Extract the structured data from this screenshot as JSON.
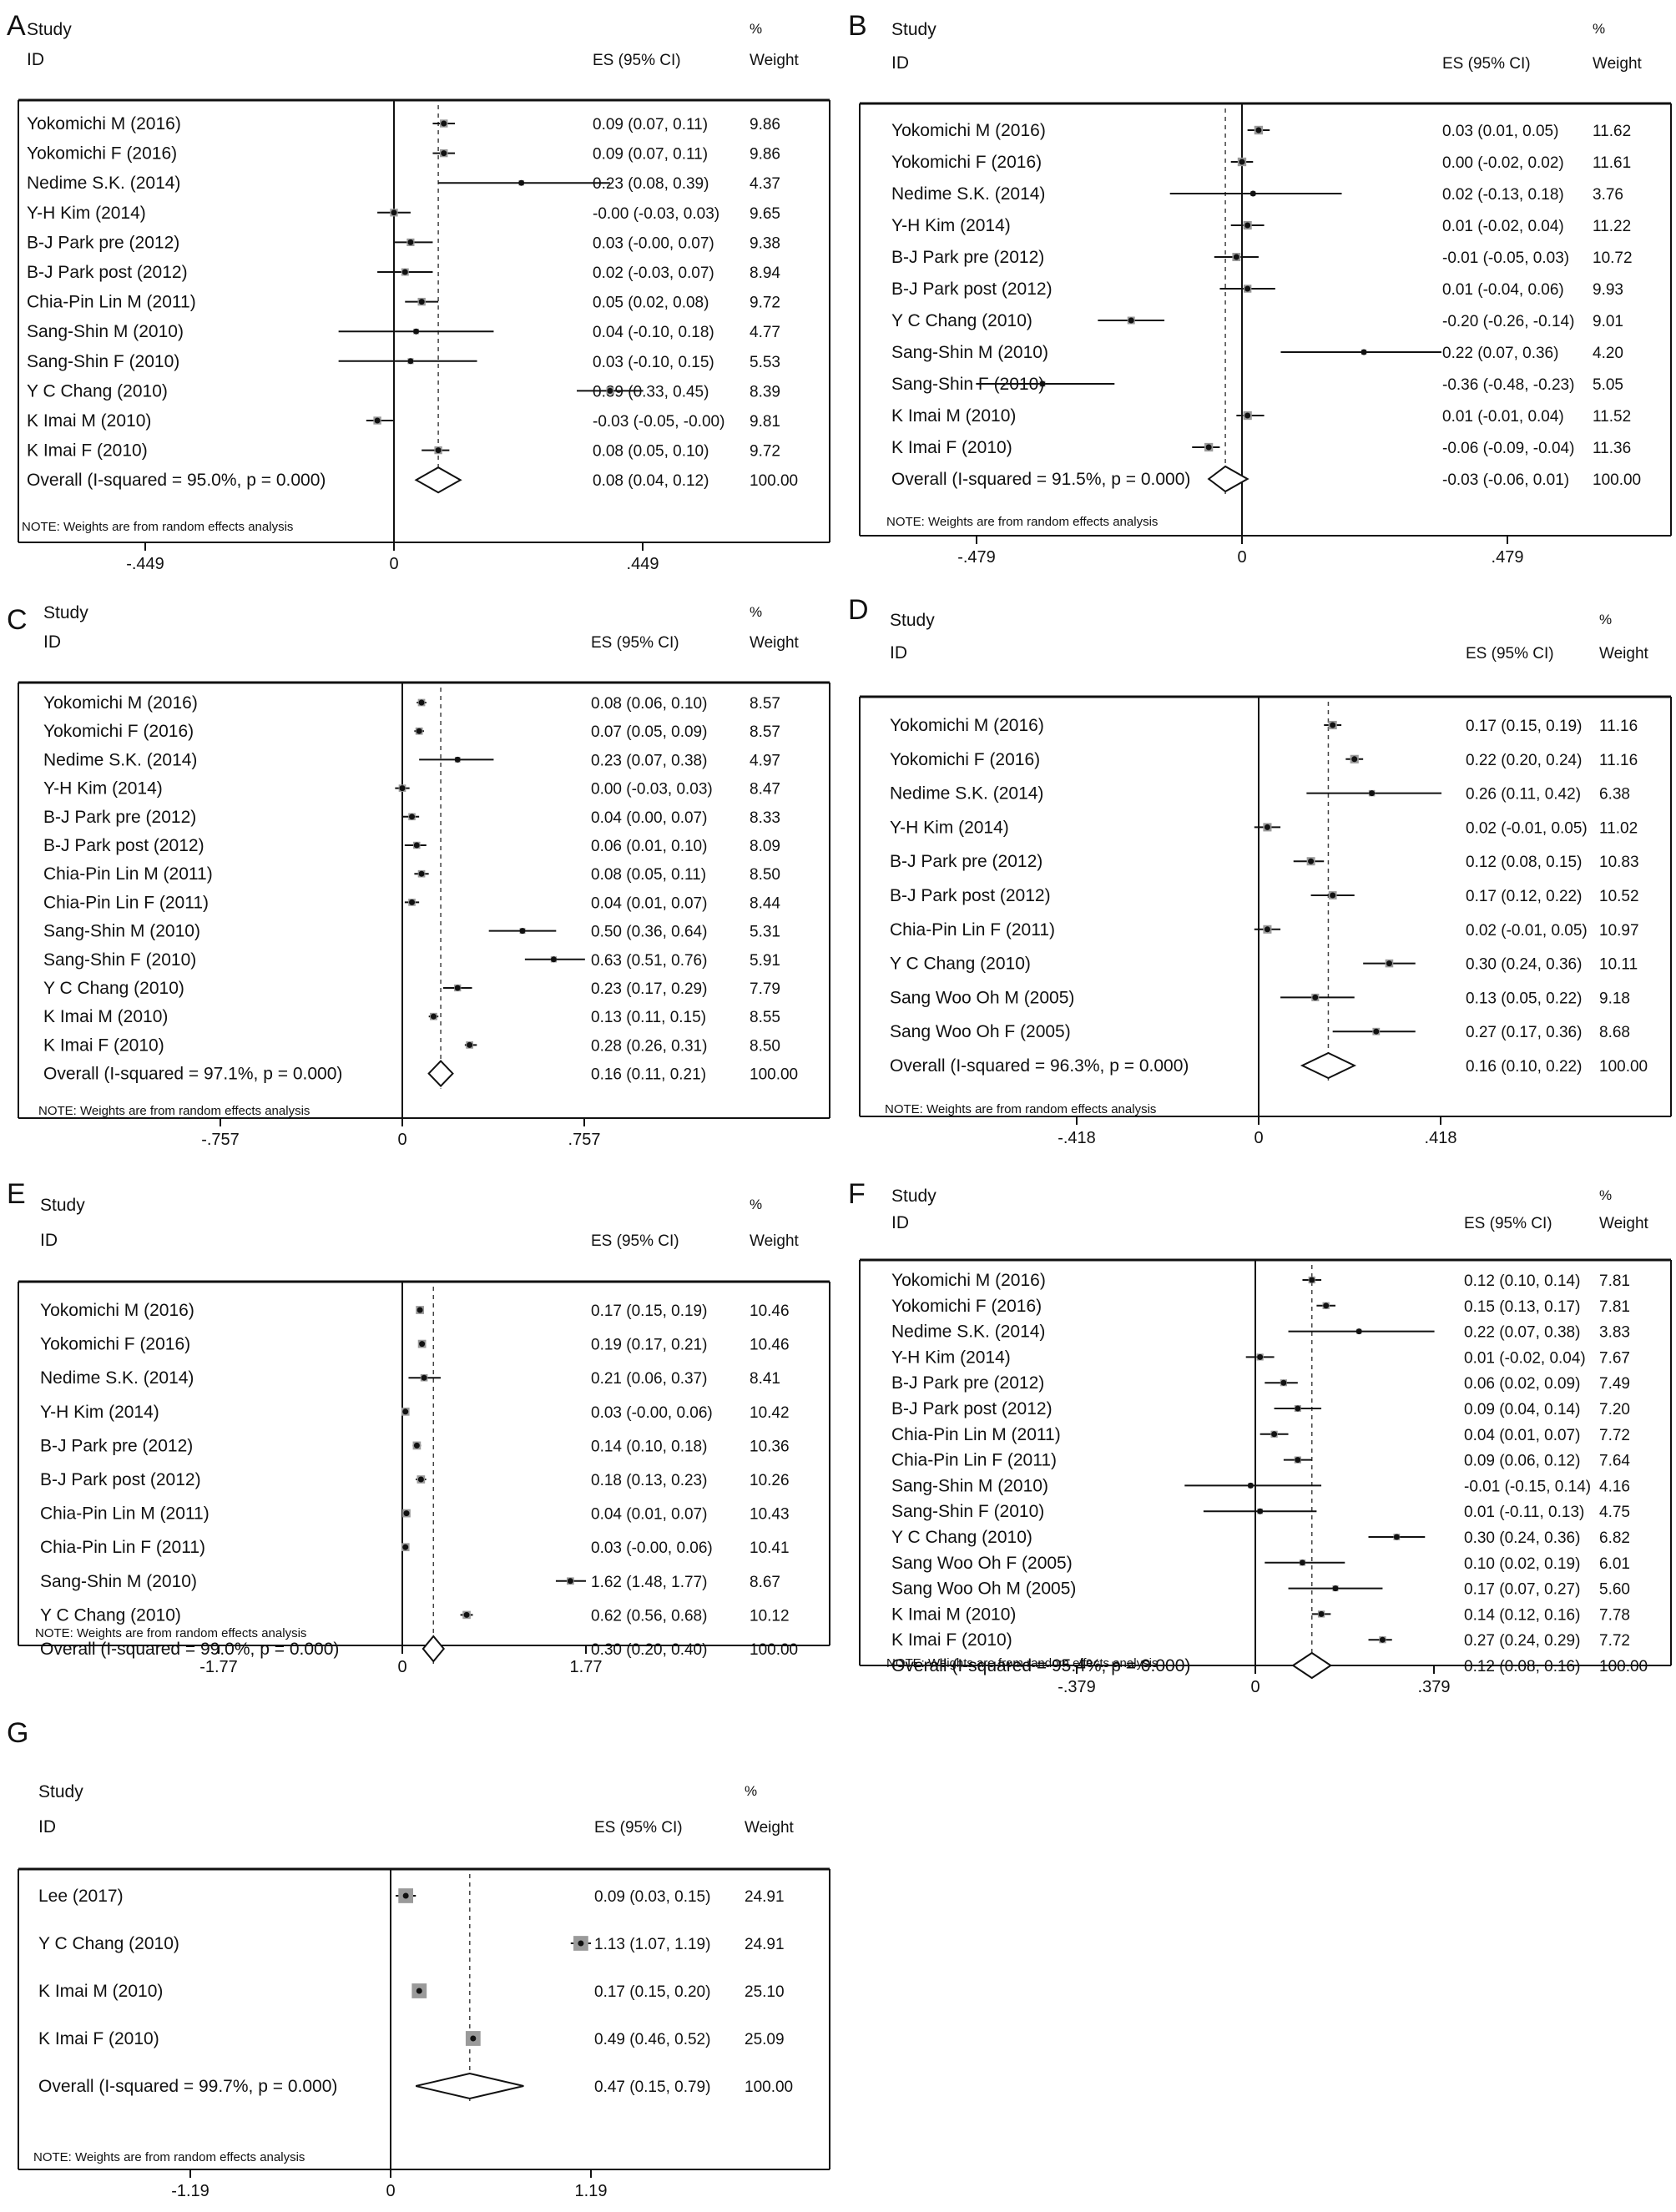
{
  "headers": {
    "study": "Study",
    "id": "ID",
    "es": "ES (95% CI)",
    "pct": "%",
    "weight": "Weight"
  },
  "chart_data": [
    {
      "type": "forest",
      "panel": "A",
      "note": "NOTE: Weights are from random effects analysis",
      "xticks": [
        "-.449",
        "0",
        ".449"
      ],
      "xlim": [
        -0.449,
        0.449
      ],
      "overall_line": 0.08,
      "studies": [
        {
          "label": "Yokomichi M (2016)",
          "es": 0.09,
          "lo": 0.07,
          "hi": 0.11,
          "es_text": "0.09 (0.07, 0.11)",
          "weight": "9.86"
        },
        {
          "label": "Yokomichi F (2016)",
          "es": 0.09,
          "lo": 0.07,
          "hi": 0.11,
          "es_text": "0.09 (0.07, 0.11)",
          "weight": "9.86"
        },
        {
          "label": "Nedime S.K. (2014)",
          "es": 0.23,
          "lo": 0.08,
          "hi": 0.39,
          "es_text": "0.23 (0.08, 0.39)",
          "weight": "4.37"
        },
        {
          "label": "Y-H Kim (2014)",
          "es": -0.0,
          "lo": -0.03,
          "hi": 0.03,
          "es_text": "-0.00 (-0.03, 0.03)",
          "weight": "9.65"
        },
        {
          "label": "B-J Park pre (2012)",
          "es": 0.03,
          "lo": -0.0,
          "hi": 0.07,
          "es_text": "0.03 (-0.00, 0.07)",
          "weight": "9.38"
        },
        {
          "label": "B-J Park post (2012)",
          "es": 0.02,
          "lo": -0.03,
          "hi": 0.07,
          "es_text": "0.02 (-0.03, 0.07)",
          "weight": "8.94"
        },
        {
          "label": "Chia-Pin Lin M (2011)",
          "es": 0.05,
          "lo": 0.02,
          "hi": 0.08,
          "es_text": "0.05 (0.02, 0.08)",
          "weight": "9.72"
        },
        {
          "label": "Sang-Shin M (2010)",
          "es": 0.04,
          "lo": -0.1,
          "hi": 0.18,
          "es_text": "0.04 (-0.10, 0.18)",
          "weight": "4.77"
        },
        {
          "label": "Sang-Shin F (2010)",
          "es": 0.03,
          "lo": -0.1,
          "hi": 0.15,
          "es_text": "0.03 (-0.10, 0.15)",
          "weight": "5.53"
        },
        {
          "label": "Y C Chang (2010)",
          "es": 0.39,
          "lo": 0.33,
          "hi": 0.45,
          "es_text": "0.39 (0.33, 0.45)",
          "weight": "8.39"
        },
        {
          "label": "K Imai M (2010)",
          "es": -0.03,
          "lo": -0.05,
          "hi": -0.0,
          "es_text": "-0.03 (-0.05, -0.00)",
          "weight": "9.81"
        },
        {
          "label": "K Imai F (2010)",
          "es": 0.08,
          "lo": 0.05,
          "hi": 0.1,
          "es_text": "0.08 (0.05, 0.10)",
          "weight": "9.72"
        }
      ],
      "overall": {
        "label": "Overall  (I-squared = 95.0%, p = 0.000)",
        "es": 0.08,
        "lo": 0.04,
        "hi": 0.12,
        "es_text": "0.08 (0.04, 0.12)",
        "weight": "100.00"
      }
    },
    {
      "type": "forest",
      "panel": "B",
      "note": "NOTE: Weights are from random effects analysis",
      "xticks": [
        "-.479",
        "0",
        ".479"
      ],
      "xlim": [
        -0.479,
        0.479
      ],
      "overall_line": -0.03,
      "studies": [
        {
          "label": "Yokomichi M (2016)",
          "es": 0.03,
          "lo": 0.01,
          "hi": 0.05,
          "es_text": "0.03 (0.01, 0.05)",
          "weight": "11.62"
        },
        {
          "label": "Yokomichi F (2016)",
          "es": 0.0,
          "lo": -0.02,
          "hi": 0.02,
          "es_text": "0.00 (-0.02, 0.02)",
          "weight": "11.61"
        },
        {
          "label": "Nedime S.K. (2014)",
          "es": 0.02,
          "lo": -0.13,
          "hi": 0.18,
          "es_text": "0.02 (-0.13, 0.18)",
          "weight": "3.76"
        },
        {
          "label": "Y-H Kim (2014)",
          "es": 0.01,
          "lo": -0.02,
          "hi": 0.04,
          "es_text": "0.01 (-0.02, 0.04)",
          "weight": "11.22"
        },
        {
          "label": "B-J Park pre (2012)",
          "es": -0.01,
          "lo": -0.05,
          "hi": 0.03,
          "es_text": "-0.01 (-0.05, 0.03)",
          "weight": "10.72"
        },
        {
          "label": "B-J Park post (2012)",
          "es": 0.01,
          "lo": -0.04,
          "hi": 0.06,
          "es_text": "0.01 (-0.04, 0.06)",
          "weight": "9.93"
        },
        {
          "label": "Y C Chang (2010)",
          "es": -0.2,
          "lo": -0.26,
          "hi": -0.14,
          "es_text": "-0.20 (-0.26, -0.14)",
          "weight": "9.01"
        },
        {
          "label": "Sang-Shin M (2010)",
          "es": 0.22,
          "lo": 0.07,
          "hi": 0.36,
          "es_text": "0.22 (0.07, 0.36)",
          "weight": "4.20"
        },
        {
          "label": "Sang-Shin F (2010)",
          "es": -0.36,
          "lo": -0.48,
          "hi": -0.23,
          "es_text": "-0.36 (-0.48, -0.23)",
          "weight": "5.05"
        },
        {
          "label": "K Imai M (2010)",
          "es": 0.01,
          "lo": -0.01,
          "hi": 0.04,
          "es_text": "0.01 (-0.01, 0.04)",
          "weight": "11.52"
        },
        {
          "label": "K Imai F (2010)",
          "es": -0.06,
          "lo": -0.09,
          "hi": -0.04,
          "es_text": "-0.06 (-0.09, -0.04)",
          "weight": "11.36"
        }
      ],
      "overall": {
        "label": "Overall  (I-squared = 91.5%, p = 0.000)",
        "es": -0.03,
        "lo": -0.06,
        "hi": 0.01,
        "es_text": "-0.03 (-0.06, 0.01)",
        "weight": "100.00"
      }
    },
    {
      "type": "forest",
      "panel": "C",
      "note": "NOTE: Weights are from random effects analysis",
      "xticks": [
        "-.757",
        "0",
        ".757"
      ],
      "xlim": [
        -0.757,
        0.757
      ],
      "overall_line": 0.16,
      "studies": [
        {
          "label": "Yokomichi M (2016)",
          "es": 0.08,
          "lo": 0.06,
          "hi": 0.1,
          "es_text": "0.08 (0.06, 0.10)",
          "weight": "8.57"
        },
        {
          "label": "Yokomichi F (2016)",
          "es": 0.07,
          "lo": 0.05,
          "hi": 0.09,
          "es_text": "0.07 (0.05, 0.09)",
          "weight": "8.57"
        },
        {
          "label": "Nedime S.K. (2014)",
          "es": 0.23,
          "lo": 0.07,
          "hi": 0.38,
          "es_text": "0.23 (0.07, 0.38)",
          "weight": "4.97"
        },
        {
          "label": "Y-H Kim (2014)",
          "es": 0.0,
          "lo": -0.03,
          "hi": 0.03,
          "es_text": "0.00 (-0.03, 0.03)",
          "weight": "8.47"
        },
        {
          "label": "B-J Park pre (2012)",
          "es": 0.04,
          "lo": 0.0,
          "hi": 0.07,
          "es_text": "0.04 (0.00, 0.07)",
          "weight": "8.33"
        },
        {
          "label": "B-J Park post (2012)",
          "es": 0.06,
          "lo": 0.01,
          "hi": 0.1,
          "es_text": "0.06 (0.01, 0.10)",
          "weight": "8.09"
        },
        {
          "label": "Chia-Pin Lin M (2011)",
          "es": 0.08,
          "lo": 0.05,
          "hi": 0.11,
          "es_text": "0.08 (0.05, 0.11)",
          "weight": "8.50"
        },
        {
          "label": "Chia-Pin Lin F (2011)",
          "es": 0.04,
          "lo": 0.01,
          "hi": 0.07,
          "es_text": "0.04 (0.01, 0.07)",
          "weight": "8.44"
        },
        {
          "label": "Sang-Shin M (2010)",
          "es": 0.5,
          "lo": 0.36,
          "hi": 0.64,
          "es_text": "0.50 (0.36, 0.64)",
          "weight": "5.31"
        },
        {
          "label": "Sang-Shin F (2010)",
          "es": 0.63,
          "lo": 0.51,
          "hi": 0.76,
          "es_text": "0.63 (0.51, 0.76)",
          "weight": "5.91"
        },
        {
          "label": "Y C Chang (2010)",
          "es": 0.23,
          "lo": 0.17,
          "hi": 0.29,
          "es_text": "0.23 (0.17, 0.29)",
          "weight": "7.79"
        },
        {
          "label": "K Imai M (2010)",
          "es": 0.13,
          "lo": 0.11,
          "hi": 0.15,
          "es_text": "0.13 (0.11, 0.15)",
          "weight": "8.55"
        },
        {
          "label": "K Imai F (2010)",
          "es": 0.28,
          "lo": 0.26,
          "hi": 0.31,
          "es_text": "0.28 (0.26, 0.31)",
          "weight": "8.50"
        }
      ],
      "overall": {
        "label": "Overall  (I-squared = 97.1%, p = 0.000)",
        "es": 0.16,
        "lo": 0.11,
        "hi": 0.21,
        "es_text": "0.16 (0.11, 0.21)",
        "weight": "100.00"
      }
    },
    {
      "type": "forest",
      "panel": "D",
      "note": "NOTE: Weights are from random effects analysis",
      "xticks": [
        "-.418",
        "0",
        ".418"
      ],
      "xlim": [
        -0.418,
        0.418
      ],
      "overall_line": 0.16,
      "studies": [
        {
          "label": "Yokomichi M (2016)",
          "es": 0.17,
          "lo": 0.15,
          "hi": 0.19,
          "es_text": "0.17 (0.15, 0.19)",
          "weight": "11.16"
        },
        {
          "label": "Yokomichi F (2016)",
          "es": 0.22,
          "lo": 0.2,
          "hi": 0.24,
          "es_text": "0.22 (0.20, 0.24)",
          "weight": "11.16"
        },
        {
          "label": "Nedime S.K. (2014)",
          "es": 0.26,
          "lo": 0.11,
          "hi": 0.42,
          "es_text": "0.26 (0.11, 0.42)",
          "weight": "6.38"
        },
        {
          "label": "Y-H Kim (2014)",
          "es": 0.02,
          "lo": -0.01,
          "hi": 0.05,
          "es_text": "0.02 (-0.01, 0.05)",
          "weight": "11.02"
        },
        {
          "label": "B-J Park pre (2012)",
          "es": 0.12,
          "lo": 0.08,
          "hi": 0.15,
          "es_text": "0.12 (0.08, 0.15)",
          "weight": "10.83"
        },
        {
          "label": "B-J Park post (2012)",
          "es": 0.17,
          "lo": 0.12,
          "hi": 0.22,
          "es_text": "0.17 (0.12, 0.22)",
          "weight": "10.52"
        },
        {
          "label": "Chia-Pin Lin F (2011)",
          "es": 0.02,
          "lo": -0.01,
          "hi": 0.05,
          "es_text": "0.02 (-0.01, 0.05)",
          "weight": "10.97"
        },
        {
          "label": "Y C Chang (2010)",
          "es": 0.3,
          "lo": 0.24,
          "hi": 0.36,
          "es_text": "0.30 (0.24, 0.36)",
          "weight": "10.11"
        },
        {
          "label": "Sang Woo Oh M (2005)",
          "es": 0.13,
          "lo": 0.05,
          "hi": 0.22,
          "es_text": "0.13 (0.05, 0.22)",
          "weight": "9.18"
        },
        {
          "label": "Sang Woo Oh F (2005)",
          "es": 0.27,
          "lo": 0.17,
          "hi": 0.36,
          "es_text": "0.27 (0.17, 0.36)",
          "weight": "8.68"
        }
      ],
      "overall": {
        "label": "Overall  (I-squared = 96.3%, p = 0.000)",
        "es": 0.16,
        "lo": 0.1,
        "hi": 0.22,
        "es_text": "0.16 (0.10, 0.22)",
        "weight": "100.00"
      }
    },
    {
      "type": "forest",
      "panel": "E",
      "note": "NOTE: Weights are from random effects analysis",
      "xticks": [
        "-1.77",
        "0",
        "1.77"
      ],
      "xlim": [
        -1.77,
        1.77
      ],
      "overall_line": 0.3,
      "studies": [
        {
          "label": "Yokomichi M (2016)",
          "es": 0.17,
          "lo": 0.15,
          "hi": 0.19,
          "es_text": "0.17 (0.15, 0.19)",
          "weight": "10.46"
        },
        {
          "label": "Yokomichi F (2016)",
          "es": 0.19,
          "lo": 0.17,
          "hi": 0.21,
          "es_text": "0.19 (0.17, 0.21)",
          "weight": "10.46"
        },
        {
          "label": "Nedime S.K. (2014)",
          "es": 0.21,
          "lo": 0.06,
          "hi": 0.37,
          "es_text": "0.21 (0.06, 0.37)",
          "weight": "8.41"
        },
        {
          "label": "Y-H Kim (2014)",
          "es": 0.03,
          "lo": -0.0,
          "hi": 0.06,
          "es_text": "0.03 (-0.00, 0.06)",
          "weight": "10.42"
        },
        {
          "label": "B-J Park pre (2012)",
          "es": 0.14,
          "lo": 0.1,
          "hi": 0.18,
          "es_text": "0.14 (0.10, 0.18)",
          "weight": "10.36"
        },
        {
          "label": "B-J Park post (2012)",
          "es": 0.18,
          "lo": 0.13,
          "hi": 0.23,
          "es_text": "0.18 (0.13, 0.23)",
          "weight": "10.26"
        },
        {
          "label": "Chia-Pin Lin M (2011)",
          "es": 0.04,
          "lo": 0.01,
          "hi": 0.07,
          "es_text": "0.04 (0.01, 0.07)",
          "weight": "10.43"
        },
        {
          "label": "Chia-Pin Lin F (2011)",
          "es": 0.03,
          "lo": -0.0,
          "hi": 0.06,
          "es_text": "0.03 (-0.00, 0.06)",
          "weight": "10.41"
        },
        {
          "label": "Sang-Shin M (2010)",
          "es": 1.62,
          "lo": 1.48,
          "hi": 1.77,
          "es_text": "1.62 (1.48, 1.77)",
          "weight": "8.67"
        },
        {
          "label": "Y C Chang (2010)",
          "es": 0.62,
          "lo": 0.56,
          "hi": 0.68,
          "es_text": "0.62 (0.56, 0.68)",
          "weight": "10.12"
        }
      ],
      "overall": {
        "label": "Overall  (I-squared = 99.0%, p = 0.000)",
        "es": 0.3,
        "lo": 0.2,
        "hi": 0.4,
        "es_text": "0.30 (0.20, 0.40)",
        "weight": "100.00"
      }
    },
    {
      "type": "forest",
      "panel": "F",
      "note": "NOTE: Weights are from random effects analysis",
      "xticks": [
        "-.379",
        "0",
        ".379"
      ],
      "xlim": [
        -0.379,
        0.379
      ],
      "overall_line": 0.12,
      "studies": [
        {
          "label": "Yokomichi M (2016)",
          "es": 0.12,
          "lo": 0.1,
          "hi": 0.14,
          "es_text": "0.12 (0.10, 0.14)",
          "weight": "7.81"
        },
        {
          "label": "Yokomichi F (2016)",
          "es": 0.15,
          "lo": 0.13,
          "hi": 0.17,
          "es_text": "0.15 (0.13, 0.17)",
          "weight": "7.81"
        },
        {
          "label": "Nedime S.K. (2014)",
          "es": 0.22,
          "lo": 0.07,
          "hi": 0.38,
          "es_text": "0.22 (0.07, 0.38)",
          "weight": "3.83"
        },
        {
          "label": "Y-H Kim (2014)",
          "es": 0.01,
          "lo": -0.02,
          "hi": 0.04,
          "es_text": "0.01 (-0.02, 0.04)",
          "weight": "7.67"
        },
        {
          "label": "B-J Park pre (2012)",
          "es": 0.06,
          "lo": 0.02,
          "hi": 0.09,
          "es_text": "0.06 (0.02, 0.09)",
          "weight": "7.49"
        },
        {
          "label": "B-J Park post (2012)",
          "es": 0.09,
          "lo": 0.04,
          "hi": 0.14,
          "es_text": "0.09 (0.04, 0.14)",
          "weight": "7.20"
        },
        {
          "label": "Chia-Pin Lin M (2011)",
          "es": 0.04,
          "lo": 0.01,
          "hi": 0.07,
          "es_text": "0.04 (0.01, 0.07)",
          "weight": "7.72"
        },
        {
          "label": "Chia-Pin Lin F (2011)",
          "es": 0.09,
          "lo": 0.06,
          "hi": 0.12,
          "es_text": "0.09 (0.06, 0.12)",
          "weight": "7.64"
        },
        {
          "label": "Sang-Shin M (2010)",
          "es": -0.01,
          "lo": -0.15,
          "hi": 0.14,
          "es_text": "-0.01 (-0.15, 0.14)",
          "weight": "4.16"
        },
        {
          "label": "Sang-Shin F (2010)",
          "es": 0.01,
          "lo": -0.11,
          "hi": 0.13,
          "es_text": "0.01 (-0.11, 0.13)",
          "weight": "4.75"
        },
        {
          "label": "Y C Chang (2010)",
          "es": 0.3,
          "lo": 0.24,
          "hi": 0.36,
          "es_text": "0.30 (0.24, 0.36)",
          "weight": "6.82"
        },
        {
          "label": "Sang Woo Oh F (2005)",
          "es": 0.1,
          "lo": 0.02,
          "hi": 0.19,
          "es_text": "0.10 (0.02, 0.19)",
          "weight": "6.01"
        },
        {
          "label": "Sang Woo Oh M (2005)",
          "es": 0.17,
          "lo": 0.07,
          "hi": 0.27,
          "es_text": "0.17 (0.07, 0.27)",
          "weight": "5.60"
        },
        {
          "label": "K Imai M (2010)",
          "es": 0.14,
          "lo": 0.12,
          "hi": 0.16,
          "es_text": "0.14 (0.12, 0.16)",
          "weight": "7.78"
        },
        {
          "label": "K Imai F (2010)",
          "es": 0.27,
          "lo": 0.24,
          "hi": 0.29,
          "es_text": "0.27 (0.24, 0.29)",
          "weight": "7.72"
        }
      ],
      "overall": {
        "label": "Overall  (I-squared = 95.4%, p = 0.000)",
        "es": 0.12,
        "lo": 0.08,
        "hi": 0.16,
        "es_text": "0.12 (0.08, 0.16)",
        "weight": "100.00"
      }
    },
    {
      "type": "forest",
      "panel": "G",
      "note": "NOTE: Weights are from random effects analysis",
      "xticks": [
        "-1.19",
        "0",
        "1.19"
      ],
      "xlim": [
        -1.19,
        1.19
      ],
      "overall_line": 0.47,
      "studies": [
        {
          "label": "Lee (2017)",
          "es": 0.09,
          "lo": 0.03,
          "hi": 0.15,
          "es_text": "0.09 (0.03, 0.15)",
          "weight": "24.91"
        },
        {
          "label": "Y C Chang (2010)",
          "es": 1.13,
          "lo": 1.07,
          "hi": 1.19,
          "es_text": "1.13 (1.07, 1.19)",
          "weight": "24.91"
        },
        {
          "label": "K Imai M (2010)",
          "es": 0.17,
          "lo": 0.15,
          "hi": 0.2,
          "es_text": "0.17 (0.15, 0.20)",
          "weight": "25.10"
        },
        {
          "label": "K Imai F (2010)",
          "es": 0.49,
          "lo": 0.46,
          "hi": 0.52,
          "es_text": "0.49 (0.46, 0.52)",
          "weight": "25.09"
        }
      ],
      "overall": {
        "label": "Overall  (I-squared = 99.7%, p = 0.000)",
        "es": 0.47,
        "lo": 0.15,
        "hi": 0.79,
        "es_text": "0.47 (0.15, 0.79)",
        "weight": "100.00"
      }
    }
  ]
}
